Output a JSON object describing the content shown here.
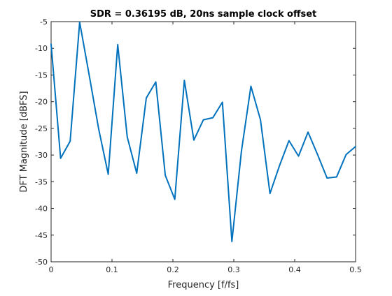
{
  "chart_data": {
    "type": "line",
    "title": "SDR = 0.36195 dB, 20ns sample clock offset",
    "xlabel": "Frequency [f/fs]",
    "ylabel": "DFT Magnitude [dBFS]",
    "xlim": [
      0,
      0.5
    ],
    "ylim": [
      -50,
      -5
    ],
    "xticks": [
      0,
      0.1,
      0.2,
      0.3,
      0.4,
      0.5
    ],
    "xtick_labels": [
      "0",
      "0.1",
      "0.2",
      "0.3",
      "0.4",
      "0.5"
    ],
    "yticks": [
      -50,
      -45,
      -40,
      -35,
      -30,
      -25,
      -20,
      -15,
      -10,
      -5
    ],
    "ytick_labels": [
      "-50",
      "-45",
      "-40",
      "-35",
      "-30",
      "-25",
      "-20",
      "-15",
      "-10",
      "-5"
    ],
    "grid": false,
    "legend": "none",
    "series": [
      {
        "color": "#0072BD",
        "x": [
          0,
          0.0156,
          0.0313,
          0.0469,
          0.0625,
          0.0781,
          0.0938,
          0.1094,
          0.125,
          0.1406,
          0.1563,
          0.1719,
          0.1875,
          0.2031,
          0.2188,
          0.2344,
          0.25,
          0.2656,
          0.2813,
          0.2969,
          0.3125,
          0.3281,
          0.3438,
          0.3594,
          0.375,
          0.3906,
          0.4063,
          0.4219,
          0.4375,
          0.4531,
          0.4688,
          0.4844,
          0.5
        ],
        "y": [
          -9.2,
          -30.6,
          -27.4,
          -5.1,
          -15.0,
          -25.1,
          -33.6,
          -9.3,
          -26.6,
          -33.4,
          -19.3,
          -16.3,
          -33.8,
          -38.3,
          -16.0,
          -27.2,
          -23.4,
          -23.0,
          -20.1,
          -46.2,
          -29.3,
          -17.1,
          -23.4,
          -37.2,
          -32.0,
          -27.3,
          -30.2,
          -25.7,
          -29.9,
          -34.3,
          -34.1,
          -29.9,
          -28.4
        ]
      }
    ]
  }
}
